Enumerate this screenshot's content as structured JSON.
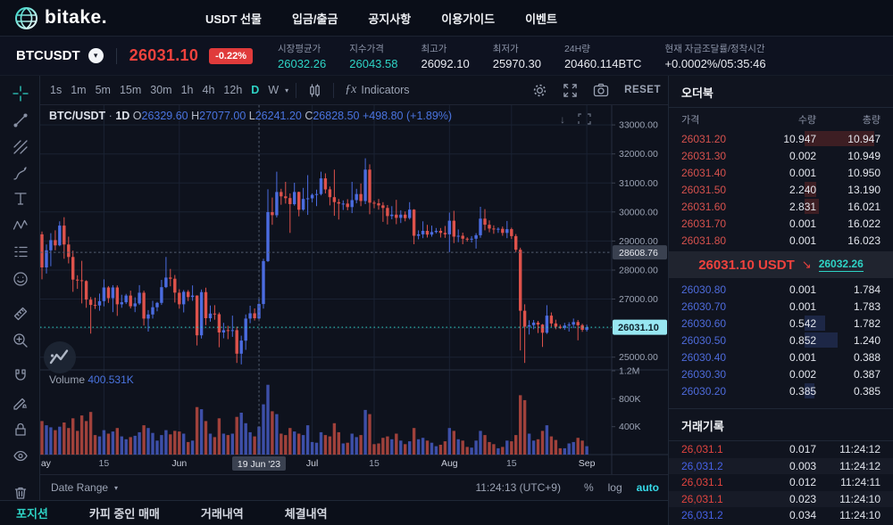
{
  "nav": {
    "logo_text": "bitake.",
    "items": [
      "USDT 선물",
      "입금/출금",
      "공지사항",
      "이용가이드",
      "이벤트"
    ]
  },
  "ticker": {
    "symbol": "BTCUSDT",
    "symbol_caret": "▾",
    "last_price": "26031.10",
    "change_pct": "-0.22%",
    "stats": [
      {
        "label": "시장평균가",
        "value": "26032.26",
        "accent": true
      },
      {
        "label": "지수가격",
        "value": "26043.58",
        "accent": true
      },
      {
        "label": "최고가",
        "value": "26092.10",
        "accent": false
      },
      {
        "label": "최저가",
        "value": "25970.30",
        "accent": false
      },
      {
        "label": "24H량",
        "value": "20460.114BTC",
        "accent": false
      },
      {
        "label": "현재 자금조달률/정착시간",
        "value": "+0.0002%/05:35:46",
        "accent": false
      }
    ]
  },
  "chart_toolbar": {
    "timeframes": [
      "1s",
      "1m",
      "5m",
      "15m",
      "30m",
      "1h",
      "4h",
      "12h",
      "D",
      "W"
    ],
    "active_timeframe": "D",
    "caret": "▾",
    "fx_label": "ƒx",
    "indicators_label": "Indicators",
    "reset_label": "RESET"
  },
  "left_tools": [
    "crosshair",
    "trend-line",
    "fib-retracement",
    "brush",
    "text",
    "xabcd-pattern",
    "forecast",
    "emoji",
    "ruler",
    "zoom-in",
    "magnet",
    "drawing-unlock",
    "lock-all",
    "hide-drawings",
    "remove-drawings"
  ],
  "chart_data": {
    "type": "candlestick",
    "symbol": "BTC/USDT",
    "interval": "1D",
    "legend": {
      "pair": "BTC/USDT",
      "dot": "·",
      "interval": "1D",
      "o": "26329.60",
      "h": "27077.00",
      "l": "26241.20",
      "c": "26828.50",
      "change": "+498.80 (+1.89%)"
    },
    "volume_legend": {
      "label": "Volume",
      "value": "400.531K"
    },
    "pane_icons": [
      {
        "name": "scroll-down-icon",
        "glyph": "↓"
      },
      {
        "name": "maximize-pane-icon",
        "glyph": "frame"
      }
    ],
    "y_axis": {
      "price_min": 24560,
      "price_max": 33680,
      "ticks": [
        33000,
        32000,
        31000,
        30000,
        29000,
        28000,
        27000,
        26000,
        25000
      ],
      "hide_label_near_last": true
    },
    "volume_axis": {
      "max_k": 1200,
      "ticks": [
        {
          "label": "1.2M",
          "v": 1200
        },
        {
          "label": "800K",
          "v": 800
        },
        {
          "label": "400K",
          "v": 400
        }
      ]
    },
    "x_axis_ticks": [
      {
        "label": "May",
        "i": 0,
        "major": true
      },
      {
        "label": "15",
        "i": 14,
        "major": false
      },
      {
        "label": "Jun",
        "i": 31,
        "major": true
      },
      {
        "label": "Jul",
        "i": 61,
        "major": true
      },
      {
        "label": "15",
        "i": 75,
        "major": false
      },
      {
        "label": "Aug",
        "i": 92,
        "major": true
      },
      {
        "label": "15",
        "i": 106,
        "major": false
      },
      {
        "label": "Sep",
        "i": 123,
        "major": true
      }
    ],
    "crosshair": {
      "candle_index": 49,
      "price": 28608.76,
      "price_label": "28608.76",
      "date_label": "19 Jun '23"
    },
    "last": {
      "value": 26031.1,
      "price_label": "26031.10"
    },
    "start_date": "2023-05-01",
    "candles": [
      [
        29230,
        29330,
        27680,
        28090,
        480
      ],
      [
        28090,
        28880,
        27880,
        28680,
        420
      ],
      [
        28680,
        29270,
        28130,
        29030,
        390
      ],
      [
        29030,
        29370,
        28680,
        28850,
        350
      ],
      [
        28850,
        29680,
        28820,
        29530,
        400
      ],
      [
        29530,
        29820,
        28390,
        28880,
        460
      ],
      [
        28880,
        29150,
        28230,
        28450,
        380
      ],
      [
        28450,
        28670,
        27250,
        27670,
        520
      ],
      [
        27670,
        27820,
        27350,
        27650,
        340
      ],
      [
        27650,
        28320,
        26850,
        27620,
        560
      ],
      [
        27620,
        27650,
        26700,
        26980,
        480
      ],
      [
        26980,
        27070,
        25810,
        26800,
        610
      ],
      [
        26800,
        27050,
        26660,
        26780,
        280
      ],
      [
        26780,
        27190,
        26600,
        26930,
        260
      ],
      [
        26930,
        27680,
        26750,
        27400,
        350
      ],
      [
        27400,
        27450,
        26870,
        27030,
        300
      ],
      [
        27030,
        27480,
        26550,
        27400,
        330
      ],
      [
        27400,
        27470,
        26420,
        26820,
        380
      ],
      [
        26820,
        27150,
        26700,
        26890,
        260
      ],
      [
        26890,
        27180,
        26830,
        27120,
        220
      ],
      [
        27120,
        27290,
        26680,
        26750,
        250
      ],
      [
        26750,
        27060,
        26550,
        26850,
        270
      ],
      [
        26850,
        27480,
        26800,
        27220,
        320
      ],
      [
        27220,
        27290,
        26090,
        26330,
        420
      ],
      [
        26330,
        26620,
        25880,
        26470,
        380
      ],
      [
        26470,
        26940,
        26330,
        26720,
        310
      ],
      [
        26720,
        26900,
        26580,
        26870,
        200
      ],
      [
        26870,
        27660,
        26800,
        27410,
        280
      ],
      [
        27410,
        28450,
        27380,
        27740,
        350
      ],
      [
        27740,
        28040,
        27440,
        27700,
        290
      ],
      [
        27700,
        27830,
        26880,
        27220,
        340
      ],
      [
        27220,
        27340,
        26670,
        26820,
        330
      ],
      [
        26820,
        27310,
        26540,
        27250,
        300
      ],
      [
        27250,
        27310,
        26930,
        27070,
        180
      ],
      [
        27070,
        27470,
        26940,
        27120,
        200
      ],
      [
        27120,
        27130,
        25400,
        25750,
        680
      ],
      [
        25750,
        27330,
        25640,
        27240,
        650
      ],
      [
        27240,
        27390,
        26100,
        26340,
        480
      ],
      [
        26340,
        26780,
        26220,
        26500,
        300
      ],
      [
        26500,
        26790,
        26290,
        26480,
        250
      ],
      [
        26480,
        26540,
        25340,
        25850,
        520
      ],
      [
        25850,
        26180,
        25650,
        25930,
        300
      ],
      [
        25930,
        26080,
        25620,
        25900,
        280
      ],
      [
        25900,
        26430,
        25700,
        25930,
        300
      ],
      [
        25930,
        26050,
        24800,
        25120,
        540
      ],
      [
        25120,
        25740,
        24750,
        25570,
        600
      ],
      [
        25570,
        26470,
        25250,
        26330,
        450
      ],
      [
        26330,
        26770,
        26170,
        26510,
        320
      ],
      [
        26510,
        26680,
        26260,
        26340,
        260
      ],
      [
        26329.6,
        27077,
        26241.2,
        26828.5,
        400.5
      ],
      [
        26830,
        28390,
        26670,
        28310,
        720
      ],
      [
        28310,
        30780,
        28280,
        29995,
        1000
      ],
      [
        29995,
        30500,
        29560,
        29890,
        620
      ],
      [
        29890,
        31390,
        29810,
        30690,
        580
      ],
      [
        30690,
        30800,
        30250,
        30540,
        300
      ],
      [
        30540,
        31040,
        30290,
        30480,
        280
      ],
      [
        30480,
        30640,
        29280,
        30270,
        380
      ],
      [
        30270,
        31010,
        30220,
        30690,
        330
      ],
      [
        30690,
        30700,
        29850,
        30080,
        300
      ],
      [
        30080,
        30830,
        30040,
        30450,
        280
      ],
      [
        30450,
        31270,
        29900,
        30470,
        420
      ],
      [
        30470,
        30640,
        30330,
        30590,
        180
      ],
      [
        30590,
        30770,
        30200,
        30620,
        170
      ],
      [
        30620,
        31390,
        30570,
        31160,
        320
      ],
      [
        31160,
        31330,
        30640,
        30780,
        280
      ],
      [
        30780,
        30880,
        30230,
        30510,
        260
      ],
      [
        30510,
        31460,
        29870,
        30340,
        450
      ],
      [
        30340,
        30450,
        29740,
        30290,
        320
      ],
      [
        30290,
        30400,
        30070,
        30290,
        160
      ],
      [
        30290,
        30440,
        30060,
        30170,
        170
      ],
      [
        30170,
        31040,
        29960,
        30410,
        300
      ],
      [
        30410,
        30800,
        30300,
        30620,
        250
      ],
      [
        30620,
        30980,
        30200,
        30380,
        280
      ],
      [
        30380,
        31850,
        30270,
        31460,
        640
      ],
      [
        31460,
        31640,
        29920,
        30320,
        580
      ],
      [
        30320,
        30390,
        30130,
        30300,
        150
      ],
      [
        30300,
        30450,
        30080,
        30230,
        160
      ],
      [
        30230,
        30340,
        29660,
        30140,
        240
      ],
      [
        30140,
        30240,
        29570,
        29860,
        260
      ],
      [
        29860,
        30200,
        29750,
        29910,
        220
      ],
      [
        29910,
        30420,
        29580,
        29800,
        300
      ],
      [
        29800,
        30060,
        29620,
        29910,
        200
      ],
      [
        29910,
        30020,
        29680,
        29790,
        150
      ],
      [
        29790,
        30340,
        29740,
        30080,
        190
      ],
      [
        30080,
        30100,
        28890,
        29180,
        380
      ],
      [
        29180,
        29370,
        29060,
        29230,
        220
      ],
      [
        29230,
        29680,
        29100,
        29350,
        240
      ],
      [
        29350,
        29560,
        29120,
        29220,
        200
      ],
      [
        29220,
        29530,
        29150,
        29310,
        170
      ],
      [
        29310,
        29450,
        29260,
        29350,
        120
      ],
      [
        29350,
        29450,
        29120,
        29280,
        140
      ],
      [
        29280,
        29520,
        29110,
        29230,
        190
      ],
      [
        29230,
        29980,
        28620,
        29700,
        380
      ],
      [
        29700,
        30040,
        28930,
        29150,
        340
      ],
      [
        29150,
        29400,
        28960,
        29180,
        220
      ],
      [
        29180,
        29290,
        28890,
        29080,
        200
      ],
      [
        29080,
        29130,
        28980,
        29050,
        110
      ],
      [
        29050,
        29170,
        28950,
        29080,
        100
      ],
      [
        29080,
        29270,
        28740,
        29200,
        200
      ],
      [
        29200,
        30180,
        29110,
        29770,
        340
      ],
      [
        29770,
        30100,
        29370,
        29560,
        280
      ],
      [
        29560,
        29710,
        29300,
        29430,
        180
      ],
      [
        29430,
        29540,
        29250,
        29400,
        150
      ],
      [
        29400,
        29470,
        29280,
        29420,
        90
      ],
      [
        29420,
        29500,
        29180,
        29280,
        110
      ],
      [
        29280,
        29690,
        29100,
        29410,
        200
      ],
      [
        29410,
        29460,
        29070,
        29170,
        190
      ],
      [
        29170,
        29240,
        28620,
        28700,
        280
      ],
      [
        28700,
        28770,
        25230,
        26600,
        850
      ],
      [
        26600,
        26820,
        24800,
        26050,
        780
      ],
      [
        26050,
        26270,
        25780,
        26100,
        300
      ],
      [
        26100,
        26280,
        25960,
        26190,
        200
      ],
      [
        26190,
        26250,
        25830,
        26120,
        220
      ],
      [
        26120,
        26140,
        25350,
        25840,
        340
      ],
      [
        25840,
        26790,
        25800,
        26430,
        420
      ],
      [
        26430,
        26540,
        26050,
        26160,
        260
      ],
      [
        26160,
        26290,
        25960,
        26050,
        210
      ],
      [
        26050,
        26120,
        25970,
        26010,
        90
      ],
      [
        26010,
        26180,
        25940,
        26090,
        90
      ],
      [
        26090,
        26200,
        25880,
        26120,
        160
      ],
      [
        26120,
        26330,
        26000,
        26210,
        180
      ],
      [
        26210,
        26280,
        25580,
        26100,
        240
      ],
      [
        26100,
        26150,
        25870,
        25940,
        200
      ],
      [
        25940,
        26120,
        25880,
        26031.1,
        120
      ]
    ]
  },
  "bottom_bar": {
    "date_range_label": "Date Range",
    "caret": "▾",
    "clock": "11:24:13 (UTC+9)",
    "percent_label": "%",
    "log_label": "log",
    "auto_label": "auto"
  },
  "orderbook": {
    "title": "오더북",
    "columns": [
      "가격",
      "수량",
      "총량"
    ],
    "asks": [
      {
        "price": "26031.20",
        "qty": "10.947",
        "total": "10.947",
        "bar": 1.0
      },
      {
        "price": "26031.30",
        "qty": "0.002",
        "total": "10.949",
        "bar": 0
      },
      {
        "price": "26031.40",
        "qty": "0.001",
        "total": "10.950",
        "bar": 0
      },
      {
        "price": "26031.50",
        "qty": "2.240",
        "total": "13.190",
        "bar": 0.17
      },
      {
        "price": "26031.60",
        "qty": "2.831",
        "total": "16.021",
        "bar": 0.21
      },
      {
        "price": "26031.70",
        "qty": "0.001",
        "total": "16.022",
        "bar": 0
      },
      {
        "price": "26031.80",
        "qty": "0.001",
        "total": "16.023",
        "bar": 0
      }
    ],
    "last": {
      "price": "26031.10",
      "unit": "USDT",
      "arrow": "↘",
      "index_price": "26032.26"
    },
    "bids": [
      {
        "price": "26030.80",
        "qty": "0.001",
        "total": "1.784",
        "bar": 0
      },
      {
        "price": "26030.70",
        "qty": "0.001",
        "total": "1.783",
        "bar": 0
      },
      {
        "price": "26030.60",
        "qty": "0.542",
        "total": "1.782",
        "bar": 0.3
      },
      {
        "price": "26030.50",
        "qty": "0.852",
        "total": "1.240",
        "bar": 0.48
      },
      {
        "price": "26030.40",
        "qty": "0.001",
        "total": "0.388",
        "bar": 0
      },
      {
        "price": "26030.30",
        "qty": "0.002",
        "total": "0.387",
        "bar": 0
      },
      {
        "price": "26030.20",
        "qty": "0.385",
        "total": "0.385",
        "bar": 0.14
      }
    ]
  },
  "trades": {
    "title": "거래기록",
    "rows": [
      {
        "price": "26,031.1",
        "side": "sell",
        "qty": "0.017",
        "time": "11:24:12"
      },
      {
        "price": "26,031.2",
        "side": "buy",
        "qty": "0.003",
        "time": "11:24:12"
      },
      {
        "price": "26,031.1",
        "side": "sell",
        "qty": "0.012",
        "time": "11:24:11"
      },
      {
        "price": "26,031.1",
        "side": "sell",
        "qty": "0.023",
        "time": "11:24:10"
      },
      {
        "price": "26,031.2",
        "side": "buy",
        "qty": "0.034",
        "time": "11:24:10"
      }
    ]
  },
  "footer_tabs": [
    {
      "label": "포지션",
      "active": true
    },
    {
      "label": "카피 중인 매매",
      "active": false
    },
    {
      "label": "거래내역",
      "active": false
    },
    {
      "label": "체결내역",
      "active": false
    }
  ],
  "colors": {
    "up": "#4b6ce0",
    "down": "#de524b",
    "vol_up": "#4357b8",
    "vol_down": "#b0473f",
    "accent": "#2ed3c5",
    "legend_value": "#4a74e0",
    "ask_text": "#d6514d",
    "bid_text": "#4e6bdb",
    "ask_bar": "#3d1e23",
    "bid_bar": "#1d2746",
    "last_tag_bg": "#97e7f2",
    "badge_bg": "#e03b3b",
    "grid": "#1a2233",
    "crosshair": "#525c6f",
    "axis_text": "#9ba3b4"
  }
}
